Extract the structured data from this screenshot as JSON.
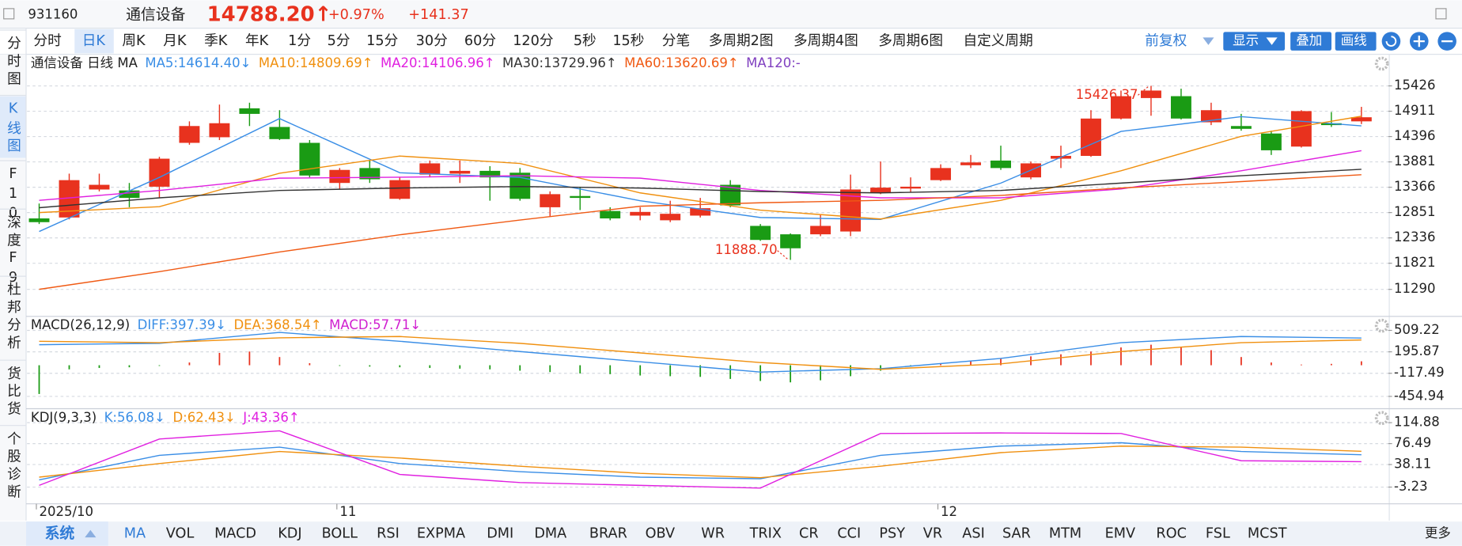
{
  "header": {
    "code": "931160",
    "name": "通信设备",
    "price": "14788.20↑",
    "change_pct": "+0.97%",
    "change": "+141.37"
  },
  "tabs": [
    "分时",
    "日K",
    "周K",
    "月K",
    "季K",
    "年K",
    "1分",
    "5分",
    "15分",
    "30分",
    "60分",
    "120分",
    "5秒",
    "15秒",
    "分笔",
    "多周期2图",
    "多周期4图",
    "多周期6图",
    "自定义周期"
  ],
  "right_tools": {
    "adjust": "前复权",
    "show": "显示",
    "overlay": "叠加",
    "draw": "画线"
  },
  "sidebar": [
    "分时图",
    "K线图",
    "F10",
    "深度F9",
    "杜邦分析",
    "货比货",
    "个股诊断"
  ],
  "bottom": {
    "system": "系统",
    "tabs": [
      "MA",
      "VOL",
      "MACD",
      "KDJ",
      "BOLL",
      "RSI",
      "EXPMA",
      "DMI",
      "DMA",
      "BRAR",
      "OBV",
      "WR",
      "TRIX",
      "CR",
      "CCI",
      "PSY",
      "VR",
      "ASI",
      "SAR",
      "MTM",
      "EMV",
      "ROC",
      "FSL",
      "MCST"
    ],
    "more": "更多"
  },
  "chart_data": [
    {
      "type": "candlestick",
      "title": "通信设备 日线 MA",
      "up_color": "#e8321e",
      "down_color": "#1a9b14",
      "ylim": [
        10760,
        16030
      ],
      "yticks": [
        15426,
        14911,
        14396,
        13881,
        13366,
        12851,
        12336,
        11821,
        11290
      ],
      "xticks": [
        {
          "value": 0,
          "label": "2025/10"
        },
        {
          "value": 10,
          "label": "11"
        },
        {
          "value": 30,
          "label": "12"
        }
      ],
      "high_label": "15426.37",
      "low_label": "11888.70",
      "candles": [
        {
          "o": 12732,
          "h": 13035,
          "l": 12618,
          "c": 12656
        },
        {
          "o": 12751,
          "h": 13642,
          "l": 12713,
          "c": 13510
        },
        {
          "o": 13320,
          "h": 13642,
          "l": 13282,
          "c": 13415
        },
        {
          "o": 13301,
          "h": 13453,
          "l": 12959,
          "c": 13149
        },
        {
          "o": 13377,
          "h": 13984,
          "l": 13149,
          "c": 13946
        },
        {
          "o": 14268,
          "h": 14705,
          "l": 14230,
          "c": 14610
        },
        {
          "o": 14382,
          "h": 15046,
          "l": 14325,
          "c": 14667
        },
        {
          "o": 14970,
          "h": 15084,
          "l": 14610,
          "c": 14857
        },
        {
          "o": 14591,
          "h": 14932,
          "l": 14325,
          "c": 14344
        },
        {
          "o": 14268,
          "h": 14325,
          "l": 13566,
          "c": 13604
        },
        {
          "o": 13453,
          "h": 13756,
          "l": 13320,
          "c": 13718
        },
        {
          "o": 13756,
          "h": 13908,
          "l": 13453,
          "c": 13528
        },
        {
          "o": 13130,
          "h": 13566,
          "l": 13111,
          "c": 13510
        },
        {
          "o": 13623,
          "h": 13908,
          "l": 13566,
          "c": 13851
        },
        {
          "o": 13642,
          "h": 13908,
          "l": 13453,
          "c": 13699
        },
        {
          "o": 13699,
          "h": 13794,
          "l": 13092,
          "c": 13566
        },
        {
          "o": 13661,
          "h": 13756,
          "l": 13092,
          "c": 13130
        },
        {
          "o": 12959,
          "h": 13282,
          "l": 12770,
          "c": 13225
        },
        {
          "o": 13187,
          "h": 13377,
          "l": 12902,
          "c": 13149
        },
        {
          "o": 12883,
          "h": 12959,
          "l": 12694,
          "c": 12732
        },
        {
          "o": 12789,
          "h": 12959,
          "l": 12694,
          "c": 12864
        },
        {
          "o": 12694,
          "h": 13092,
          "l": 12656,
          "c": 12826
        },
        {
          "o": 12789,
          "h": 13149,
          "l": 12751,
          "c": 12940
        },
        {
          "o": 13415,
          "h": 13510,
          "l": 12959,
          "c": 12997
        },
        {
          "o": 12580,
          "h": 12618,
          "l": 12276,
          "c": 12295
        },
        {
          "o": 12409,
          "h": 12428,
          "l": 11888.7,
          "c": 12125
        },
        {
          "o": 12409,
          "h": 12808,
          "l": 12371,
          "c": 12580
        },
        {
          "o": 12466,
          "h": 13623,
          "l": 12371,
          "c": 13320
        },
        {
          "o": 13263,
          "h": 13889,
          "l": 13225,
          "c": 13358
        },
        {
          "o": 13339,
          "h": 13566,
          "l": 13263,
          "c": 13377
        },
        {
          "o": 13510,
          "h": 13832,
          "l": 13491,
          "c": 13756
        },
        {
          "o": 13813,
          "h": 14022,
          "l": 13756,
          "c": 13870
        },
        {
          "o": 13908,
          "h": 14211,
          "l": 13718,
          "c": 13756
        },
        {
          "o": 13566,
          "h": 13889,
          "l": 13528,
          "c": 13851
        },
        {
          "o": 13946,
          "h": 14211,
          "l": 13756,
          "c": 14003
        },
        {
          "o": 14003,
          "h": 14932,
          "l": 13984,
          "c": 14762
        },
        {
          "o": 14762,
          "h": 15331,
          "l": 14743,
          "c": 15217
        },
        {
          "o": 15179,
          "h": 15426.37,
          "l": 14819,
          "c": 15331
        },
        {
          "o": 15217,
          "h": 15369,
          "l": 14743,
          "c": 14762
        },
        {
          "o": 14686,
          "h": 15084,
          "l": 14629,
          "c": 14932
        },
        {
          "o": 14610,
          "h": 14857,
          "l": 14515,
          "c": 14553
        },
        {
          "o": 14458,
          "h": 14515,
          "l": 14022,
          "c": 14117
        },
        {
          "o": 14192,
          "h": 14932,
          "l": 14173,
          "c": 14913
        },
        {
          "o": 14667,
          "h": 14894,
          "l": 14591,
          "c": 14629
        },
        {
          "o": 14705,
          "h": 15000,
          "l": 14650,
          "c": 14788.2
        }
      ],
      "series": [
        {
          "label": "MA5:14614.40↓",
          "color": "#3a8ee6",
          "x": [
            0,
            4,
            8,
            12,
            16,
            20,
            24,
            28,
            32,
            36,
            40,
            44
          ],
          "values": [
            12467,
            13566,
            14762,
            13661,
            13566,
            13092,
            12750,
            12713,
            13450,
            14500,
            14800,
            14614.4
          ]
        },
        {
          "label": "MA10:14809.69↑",
          "color": "#f0900f",
          "x": [
            0,
            4,
            8,
            12,
            16,
            20,
            24,
            28,
            32,
            36,
            40,
            44
          ],
          "values": [
            12850,
            12970,
            13650,
            14000,
            13850,
            13250,
            12900,
            12720,
            13100,
            13700,
            14400,
            14809.69
          ]
        },
        {
          "label": "MA20:14106.96↑",
          "color": "#e020e0",
          "x": [
            0,
            4,
            8,
            12,
            16,
            20,
            24,
            28,
            32,
            36,
            40,
            44
          ],
          "values": [
            13100,
            13300,
            13550,
            13570,
            13600,
            13550,
            13300,
            13150,
            13150,
            13330,
            13700,
            14106.96
          ]
        },
        {
          "label": "MA30:13729.96↑",
          "color": "#333333",
          "x": [
            0,
            4,
            8,
            12,
            16,
            20,
            24,
            28,
            32,
            36,
            40,
            44
          ],
          "values": [
            12950,
            13150,
            13300,
            13350,
            13380,
            13350,
            13280,
            13250,
            13300,
            13450,
            13600,
            13729.96
          ]
        },
        {
          "label": "MA60:13620.69↑",
          "color": "#f05a14",
          "x": [
            0,
            4,
            8,
            12,
            16,
            20,
            24,
            28,
            32,
            36,
            40,
            44
          ],
          "values": [
            11290,
            11650,
            12050,
            12400,
            12700,
            12980,
            13050,
            13100,
            13200,
            13350,
            13480,
            13620.69
          ]
        },
        {
          "label": "MA120:-",
          "color": "#8040c0"
        }
      ]
    },
    {
      "type": "macd",
      "title": "MACD(26,12,9)",
      "up_color": "#e8321e",
      "down_color": "#1a9b14",
      "ylim": [
        -621,
        700
      ],
      "yticks": [
        509.22,
        195.87,
        -117.49,
        -454.94
      ],
      "bars": [
        -420,
        -60,
        -40,
        -30,
        -10,
        40,
        180,
        200,
        120,
        30,
        -10,
        -20,
        -30,
        -40,
        -50,
        -60,
        -80,
        -100,
        -120,
        -130,
        -150,
        -160,
        -170,
        -200,
        -230,
        -250,
        -220,
        -160,
        -80,
        -20,
        20,
        60,
        100,
        130,
        160,
        200,
        260,
        300,
        260,
        220,
        120,
        40,
        10,
        20,
        57.71
      ],
      "series": [
        {
          "label": "DIFF:397.39↓",
          "color": "#3a8ee6",
          "x": [
            0,
            4,
            8,
            12,
            16,
            20,
            24,
            28,
            32,
            36,
            40,
            44
          ],
          "values": [
            300,
            320,
            480,
            350,
            200,
            50,
            -100,
            -50,
            100,
            330,
            420,
            397.39
          ]
        },
        {
          "label": "DEA:368.54↑",
          "color": "#f0900f",
          "x": [
            0,
            4,
            8,
            12,
            16,
            20,
            24,
            28,
            32,
            36,
            40,
            44
          ],
          "values": [
            350,
            330,
            400,
            420,
            320,
            180,
            40,
            -60,
            20,
            200,
            330,
            368.54
          ]
        },
        {
          "label": "MACD:57.71↓",
          "color": "#d020d0"
        }
      ]
    },
    {
      "type": "kdj",
      "title": "KDJ(9,3,3)",
      "ylim": [
        -30.5,
        140.5
      ],
      "yticks": [
        114.88,
        76.49,
        38.11,
        -3.23
      ],
      "series": [
        {
          "label": "K:56.08↓",
          "color": "#3a8ee6",
          "x": [
            0,
            4,
            8,
            12,
            16,
            20,
            24,
            28,
            32,
            36,
            40,
            44
          ],
          "values": [
            10,
            55,
            70,
            40,
            25,
            15,
            12,
            55,
            72,
            78,
            62,
            56.08
          ]
        },
        {
          "label": "D:62.43↓",
          "color": "#f0900f",
          "x": [
            0,
            4,
            8,
            12,
            16,
            20,
            24,
            28,
            32,
            36,
            40,
            44
          ],
          "values": [
            15,
            40,
            62,
            50,
            35,
            22,
            14,
            35,
            60,
            72,
            70,
            62.43
          ]
        },
        {
          "label": "J:43.36↑",
          "color": "#e020e0",
          "x": [
            0,
            4,
            8,
            12,
            16,
            20,
            24,
            28,
            32,
            36,
            40,
            44
          ],
          "values": [
            0,
            85,
            100,
            20,
            5,
            0,
            -5,
            95,
            96,
            95,
            45,
            43.36
          ]
        }
      ]
    }
  ]
}
